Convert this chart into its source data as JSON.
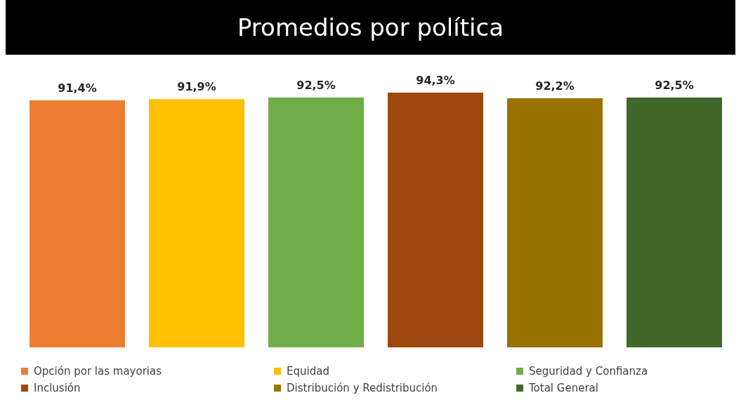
{
  "chart_data": {
    "type": "bar",
    "title": "Promedios por política",
    "categories": [
      null
    ],
    "series": [
      {
        "name": "Opción por las mayorias",
        "color": "#ed7d31",
        "values": [
          91.4
        ],
        "value_labels": [
          "91,4%"
        ]
      },
      {
        "name": "Equidad",
        "color": "#ffc000",
        "values": [
          91.9
        ],
        "value_labels": [
          "91,9%"
        ]
      },
      {
        "name": "Seguridad y Confianza",
        "color": "#70ad47",
        "values": [
          92.5
        ],
        "value_labels": [
          "92,5%"
        ]
      },
      {
        "name": "Inclusión",
        "color": "#9e480e",
        "values": [
          94.3
        ],
        "value_labels": [
          "94,3%"
        ]
      },
      {
        "name": "Distribución y Redistribución",
        "color": "#997300",
        "values": [
          92.2
        ],
        "value_labels": [
          "92,2%"
        ]
      },
      {
        "name": "Total General",
        "color": "#43682b",
        "values": [
          92.5
        ],
        "value_labels": [
          "92,5%"
        ]
      }
    ],
    "tick_labels": false,
    "legend": "bottom"
  }
}
